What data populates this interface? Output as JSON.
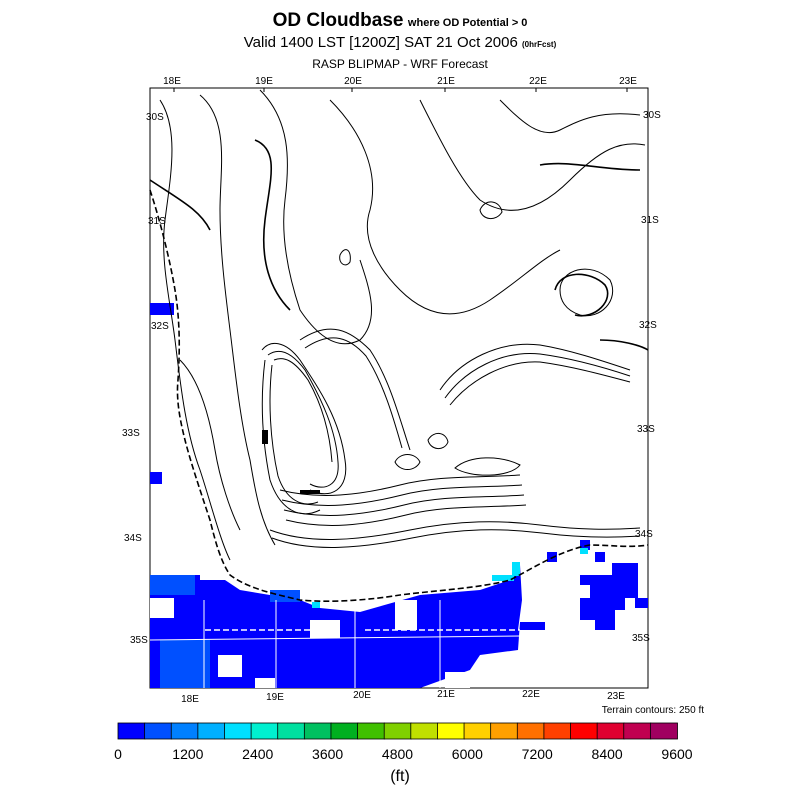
{
  "header": {
    "title": "OD Cloudbase",
    "title_note": "where OD Potential > 0",
    "valid_line": "Valid 1400 LST [1200Z] SAT 21 Oct 2006",
    "valid_note": "(0hrFcst)",
    "model_line": "RASP BLIPMAP - WRF Forecast"
  },
  "map": {
    "lon_labels_top": [
      "18E",
      "19E",
      "20E",
      "21E",
      "22E",
      "23E"
    ],
    "lon_labels_bottom": [
      "18E",
      "19E",
      "20E",
      "21E",
      "22E",
      "23E"
    ],
    "lat_labels_left": [
      "30S",
      "31S",
      "32S",
      "33S",
      "34S",
      "35S"
    ],
    "lat_labels_right": [
      "30S",
      "31S",
      "32S",
      "33S",
      "34S",
      "35S"
    ],
    "terrain_note": "Terrain contours: 250 ft"
  },
  "colorbar": {
    "colors": [
      "#0000ff",
      "#0050ff",
      "#0080ff",
      "#00b0ff",
      "#00e0ff",
      "#00f0d0",
      "#00e0a0",
      "#00c060",
      "#00b020",
      "#40c000",
      "#80d000",
      "#c0e000",
      "#ffff00",
      "#ffd000",
      "#ffa000",
      "#ff7000",
      "#ff4000",
      "#ff0000",
      "#e00030",
      "#c00050",
      "#a00060"
    ],
    "tick_labels": [
      "0",
      "1200",
      "2400",
      "3600",
      "4800",
      "6000",
      "7200",
      "8400",
      "9600"
    ],
    "units": "(ft)",
    "range": [
      0,
      9600
    ]
  }
}
